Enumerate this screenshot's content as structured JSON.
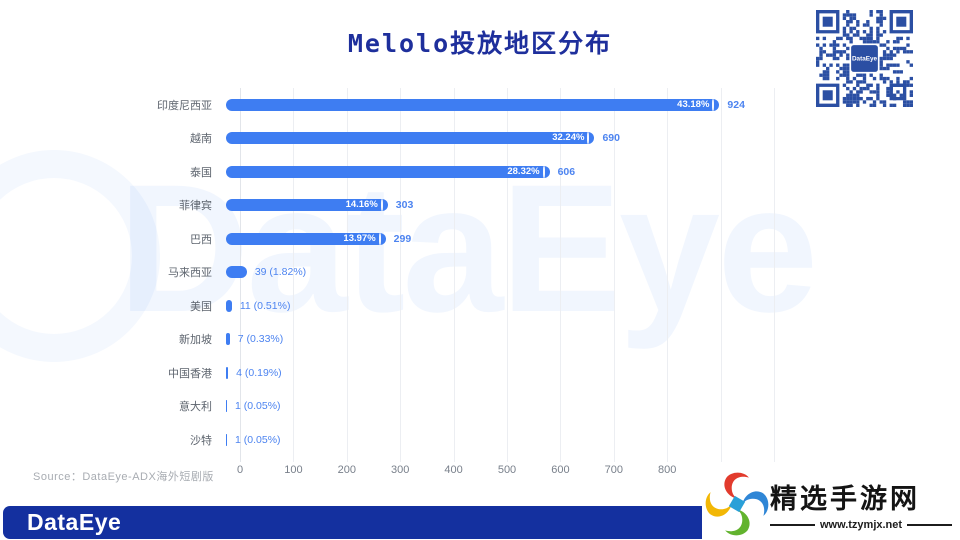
{
  "title": "Melolo投放地区分布",
  "source": {
    "text": "Source：DataEye-ADX海外短剧版"
  },
  "watermark": {
    "text": "DataEye"
  },
  "qr": {
    "label": "DataEye"
  },
  "footer": {
    "logo": "DataEye"
  },
  "stamp": {
    "name": "精选手游网",
    "url": "www.tzymjx.net"
  },
  "colors": {
    "bar": "#3e7df2",
    "title": "#1e2f9c",
    "count_label": "#4d84f0",
    "footer_bg": "#14309f",
    "qr": "#2b4fa3"
  },
  "chart_data": {
    "type": "bar",
    "orientation": "horizontal",
    "title": "Melolo投放地区分布",
    "categories": [
      "印度尼西亚",
      "越南",
      "泰国",
      "菲律宾",
      "巴西",
      "马来西亚",
      "美国",
      "新加坡",
      "中国香港",
      "意大利",
      "沙特"
    ],
    "values": [
      924,
      690,
      606,
      303,
      299,
      39,
      11,
      7,
      4,
      1,
      1
    ],
    "percents": [
      "43.18%",
      "32.24%",
      "28.32%",
      "14.16%",
      "13.97%",
      "1.82%",
      "0.51%",
      "0.33%",
      "0.19%",
      "0.05%",
      "0.05%"
    ],
    "x_ticks": [
      0,
      100,
      200,
      300,
      400,
      500,
      600,
      700,
      800
    ],
    "xlim": [
      0,
      1000
    ],
    "grid": "vertical-gridlines",
    "legend": "none",
    "xlabel": "",
    "ylabel": ""
  }
}
